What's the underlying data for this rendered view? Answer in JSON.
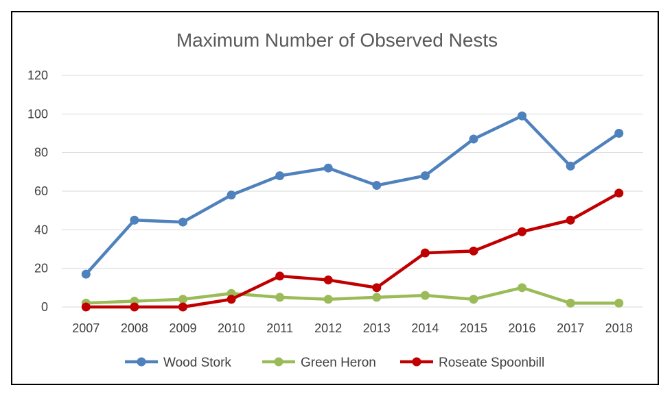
{
  "chart_data": {
    "type": "line",
    "title": "Maximum Number of Observed Nests",
    "xlabel": "",
    "ylabel": "",
    "categories": [
      "2007",
      "2008",
      "2009",
      "2010",
      "2011",
      "2012",
      "2013",
      "2014",
      "2015",
      "2016",
      "2017",
      "2018"
    ],
    "ylim": [
      0,
      120
    ],
    "yticks": [
      "0",
      "20",
      "40",
      "60",
      "80",
      "100",
      "120"
    ],
    "grid": true,
    "legend_position": "bottom",
    "series": [
      {
        "name": "Wood Stork",
        "color": "#4f81bd",
        "values": [
          17,
          45,
          44,
          58,
          68,
          72,
          63,
          68,
          87,
          99,
          73,
          90
        ]
      },
      {
        "name": "Green Heron",
        "color": "#9bbb59",
        "values": [
          2,
          3,
          4,
          7,
          5,
          4,
          5,
          6,
          4,
          10,
          2,
          2
        ]
      },
      {
        "name": "Roseate Spoonbill",
        "color": "#c00000",
        "values": [
          0,
          0,
          0,
          4,
          16,
          14,
          10,
          28,
          29,
          39,
          45,
          59
        ]
      }
    ]
  }
}
